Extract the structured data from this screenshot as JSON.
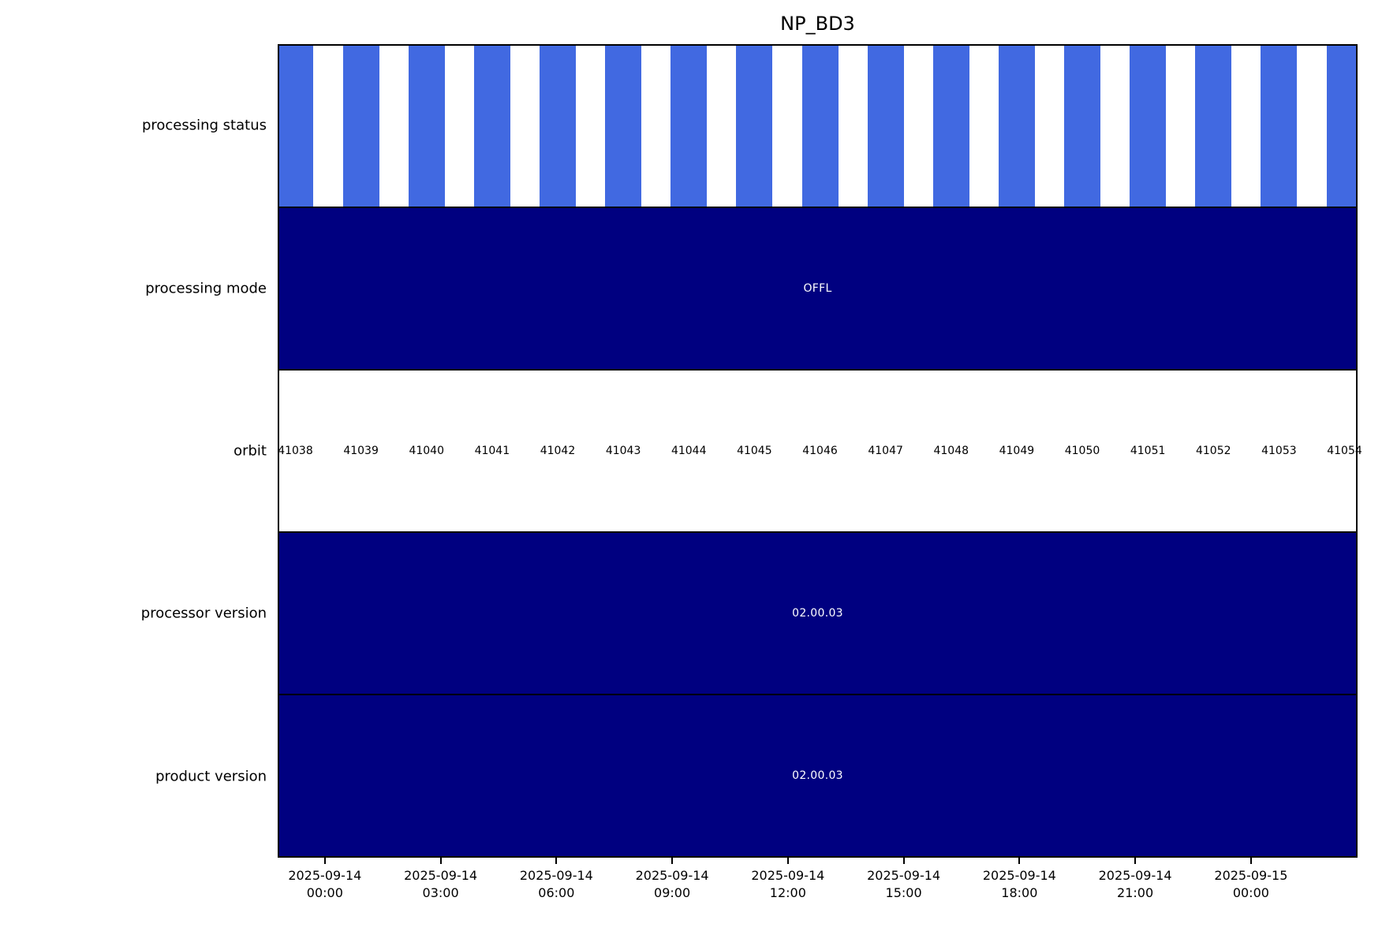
{
  "chart_data": {
    "type": "bar",
    "subtype": "categorical-timeline",
    "title": "NP_BD3",
    "rows": [
      {
        "id": "processing-status",
        "label": "processing status",
        "kind": "striped",
        "bar_color": "#4169E1"
      },
      {
        "id": "processing-mode",
        "label": "processing mode",
        "kind": "solid",
        "fill_color": "#000080",
        "value": "OFFL"
      },
      {
        "id": "orbit",
        "label": "orbit",
        "kind": "orbit-labels"
      },
      {
        "id": "processor-version",
        "label": "processor version",
        "kind": "solid",
        "fill_color": "#000080",
        "value": "02.00.03"
      },
      {
        "id": "product-version",
        "label": "product version",
        "kind": "solid",
        "fill_color": "#000080",
        "value": "02.00.03"
      }
    ],
    "orbits": [
      41038,
      41039,
      41040,
      41041,
      41042,
      41043,
      41044,
      41045,
      41046,
      41047,
      41048,
      41049,
      41050,
      41051,
      41052,
      41053,
      41054
    ],
    "x_ticks": [
      {
        "line1": "2025-09-14",
        "line2": "00:00"
      },
      {
        "line1": "2025-09-14",
        "line2": "03:00"
      },
      {
        "line1": "2025-09-14",
        "line2": "06:00"
      },
      {
        "line1": "2025-09-14",
        "line2": "09:00"
      },
      {
        "line1": "2025-09-14",
        "line2": "12:00"
      },
      {
        "line1": "2025-09-14",
        "line2": "15:00"
      },
      {
        "line1": "2025-09-14",
        "line2": "18:00"
      },
      {
        "line1": "2025-09-14",
        "line2": "21:00"
      },
      {
        "line1": "2025-09-15",
        "line2": "00:00"
      }
    ],
    "layout": {
      "first_tick_frac": 0.0437,
      "tick_spacing_frac": 0.1072,
      "orbit_first_center_frac": 0.015,
      "orbit_spacing_frac": 0.0609,
      "stripe_width_frac": 0.0337,
      "x_axis_range": [
        "2025-09-13 ~22:00",
        "2025-09-15 ~02:50"
      ],
      "grid": false,
      "legend": false
    },
    "colors": {
      "stripe_blue": "#4169E1",
      "navy": "#000080",
      "text_on_navy": "#FFFFFF",
      "axis_line": "#000000",
      "background": "#FFFFFF"
    }
  }
}
